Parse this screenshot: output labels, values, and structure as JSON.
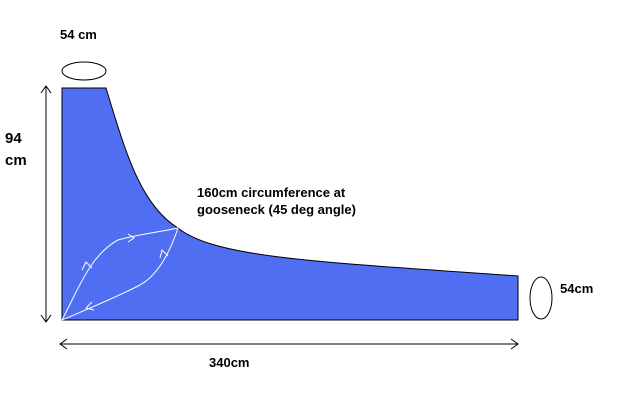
{
  "labels": {
    "top_opening": "54 cm",
    "height_line1": "94",
    "height_line2": "cm",
    "gooseneck_line1": "160cm circumference at",
    "gooseneck_line2": "gooseneck (45 deg angle)",
    "right_opening": "54cm",
    "bottom_length": "340cm"
  },
  "colors": {
    "shape_fill": "#4F6EF2",
    "outline": "#000000",
    "flow_arrows": "#FFFFFF"
  }
}
